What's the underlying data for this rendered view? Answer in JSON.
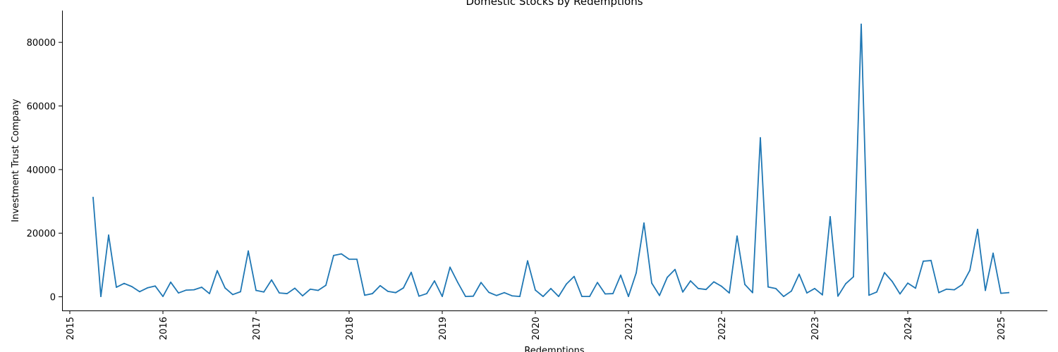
{
  "chart_data": {
    "type": "line",
    "title": "Domestic Stocks by Redemptions",
    "xlabel": "Redemptions",
    "ylabel": "Investment Trust Company",
    "x_ticks": [
      "2015",
      "2016",
      "2017",
      "2018",
      "2019",
      "2020",
      "2021",
      "2022",
      "2023",
      "2024",
      "2025"
    ],
    "y_ticks": [
      "0",
      "20000",
      "40000",
      "60000",
      "80000"
    ],
    "xlim": [
      "2014-12-01",
      "2025-07-01"
    ],
    "ylim": [
      -4300,
      90000
    ],
    "grid": false,
    "series": [
      {
        "color": "#1f77b4",
        "points": [
          [
            "2015-04",
            31200
          ],
          [
            "2015-05",
            100
          ],
          [
            "2015-06",
            19400
          ],
          [
            "2015-07",
            3000
          ],
          [
            "2015-08",
            4200
          ],
          [
            "2015-09",
            3200
          ],
          [
            "2015-10",
            1600
          ],
          [
            "2015-11",
            2800
          ],
          [
            "2015-12",
            3400
          ],
          [
            "2016-01",
            100
          ],
          [
            "2016-02",
            4600
          ],
          [
            "2016-03",
            1200
          ],
          [
            "2016-04",
            2100
          ],
          [
            "2016-05",
            2200
          ],
          [
            "2016-06",
            3000
          ],
          [
            "2016-07",
            1000
          ],
          [
            "2016-08",
            8200
          ],
          [
            "2016-09",
            2800
          ],
          [
            "2016-10",
            700
          ],
          [
            "2016-11",
            1600
          ],
          [
            "2016-12",
            14400
          ],
          [
            "2017-01",
            2000
          ],
          [
            "2017-02",
            1500
          ],
          [
            "2017-03",
            5300
          ],
          [
            "2017-04",
            1200
          ],
          [
            "2017-05",
            1000
          ],
          [
            "2017-06",
            2700
          ],
          [
            "2017-07",
            300
          ],
          [
            "2017-08",
            2400
          ],
          [
            "2017-09",
            2000
          ],
          [
            "2017-10",
            3600
          ],
          [
            "2017-11",
            13000
          ],
          [
            "2017-12",
            13500
          ],
          [
            "2018-01",
            11800
          ],
          [
            "2018-02",
            11800
          ],
          [
            "2018-03",
            500
          ],
          [
            "2018-04",
            1000
          ],
          [
            "2018-05",
            3500
          ],
          [
            "2018-06",
            1700
          ],
          [
            "2018-07",
            1300
          ],
          [
            "2018-08",
            2800
          ],
          [
            "2018-09",
            7700
          ],
          [
            "2018-10",
            200
          ],
          [
            "2018-11",
            1000
          ],
          [
            "2018-12",
            5000
          ],
          [
            "2019-01",
            100
          ],
          [
            "2019-02",
            9300
          ],
          [
            "2019-03",
            4500
          ],
          [
            "2019-04",
            100
          ],
          [
            "2019-05",
            200
          ],
          [
            "2019-06",
            4500
          ],
          [
            "2019-07",
            1400
          ],
          [
            "2019-08",
            400
          ],
          [
            "2019-09",
            1300
          ],
          [
            "2019-10",
            300
          ],
          [
            "2019-11",
            100
          ],
          [
            "2019-12",
            11300
          ],
          [
            "2020-01",
            2100
          ],
          [
            "2020-02",
            100
          ],
          [
            "2020-03",
            2600
          ],
          [
            "2020-04",
            100
          ],
          [
            "2020-05",
            4000
          ],
          [
            "2020-06",
            6400
          ],
          [
            "2020-07",
            100
          ],
          [
            "2020-08",
            100
          ],
          [
            "2020-09",
            4500
          ],
          [
            "2020-10",
            900
          ],
          [
            "2020-11",
            1000
          ],
          [
            "2020-12",
            6800
          ],
          [
            "2021-01",
            100
          ],
          [
            "2021-02",
            7500
          ],
          [
            "2021-03",
            23200
          ],
          [
            "2021-04",
            4300
          ],
          [
            "2021-05",
            400
          ],
          [
            "2021-06",
            6100
          ],
          [
            "2021-07",
            8600
          ],
          [
            "2021-08",
            1500
          ],
          [
            "2021-09",
            5000
          ],
          [
            "2021-10",
            2600
          ],
          [
            "2021-11",
            2300
          ],
          [
            "2021-12",
            4700
          ],
          [
            "2022-01",
            3300
          ],
          [
            "2022-02",
            1200
          ],
          [
            "2022-03",
            19100
          ],
          [
            "2022-04",
            3900
          ],
          [
            "2022-05",
            1300
          ],
          [
            "2022-06",
            50000
          ],
          [
            "2022-07",
            3100
          ],
          [
            "2022-08",
            2600
          ],
          [
            "2022-09",
            100
          ],
          [
            "2022-10",
            1800
          ],
          [
            "2022-11",
            7100
          ],
          [
            "2022-12",
            1200
          ],
          [
            "2023-01",
            2600
          ],
          [
            "2023-02",
            600
          ],
          [
            "2023-03",
            25200
          ],
          [
            "2023-04",
            200
          ],
          [
            "2023-05",
            4100
          ],
          [
            "2023-06",
            6300
          ],
          [
            "2023-07",
            85700
          ],
          [
            "2023-08",
            500
          ],
          [
            "2023-09",
            1500
          ],
          [
            "2023-10",
            7600
          ],
          [
            "2023-11",
            4800
          ],
          [
            "2023-12",
            900
          ],
          [
            "2024-01",
            4300
          ],
          [
            "2024-02",
            2700
          ],
          [
            "2024-03",
            11200
          ],
          [
            "2024-04",
            11400
          ],
          [
            "2024-05",
            1300
          ],
          [
            "2024-06",
            2400
          ],
          [
            "2024-07",
            2200
          ],
          [
            "2024-08",
            3800
          ],
          [
            "2024-09",
            8300
          ],
          [
            "2024-10",
            21200
          ],
          [
            "2024-11",
            2000
          ],
          [
            "2024-12",
            13700
          ],
          [
            "2025-01",
            1100
          ],
          [
            "2025-02",
            1300
          ]
        ]
      }
    ]
  }
}
